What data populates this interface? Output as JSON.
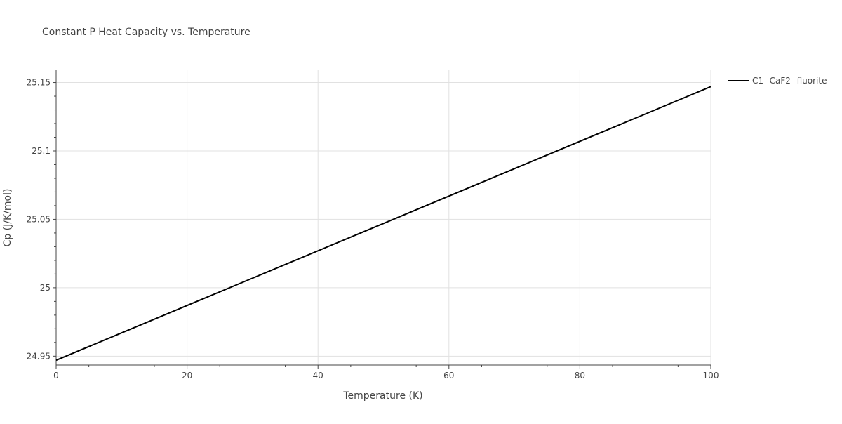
{
  "chart_data": {
    "type": "line",
    "title": "Constant P Heat Capacity vs. Temperature",
    "xlabel": "Temperature (K)",
    "ylabel": "Cp (J/K/mol)",
    "xlim": [
      0,
      100
    ],
    "ylim": [
      24.9435,
      25.159
    ],
    "x_ticks": [
      0,
      20,
      40,
      60,
      80,
      100
    ],
    "x_tick_labels": [
      "0",
      "20",
      "40",
      "60",
      "80",
      "100"
    ],
    "y_ticks": [
      24.95,
      25.0,
      25.05,
      25.1,
      25.15
    ],
    "y_tick_labels": [
      "24.95",
      "25",
      "25.05",
      "25.1",
      "25.15"
    ],
    "grid": true,
    "legend_position": "top-right",
    "series": [
      {
        "name": "C1--CaF2--fluorite",
        "color": "#000000",
        "x": [
          0,
          10,
          20,
          30,
          40,
          50,
          60,
          70,
          80,
          90,
          100
        ],
        "y": [
          24.947,
          24.967,
          24.987,
          25.007,
          25.027,
          25.047,
          25.067,
          25.087,
          25.107,
          25.127,
          25.147
        ]
      }
    ]
  }
}
